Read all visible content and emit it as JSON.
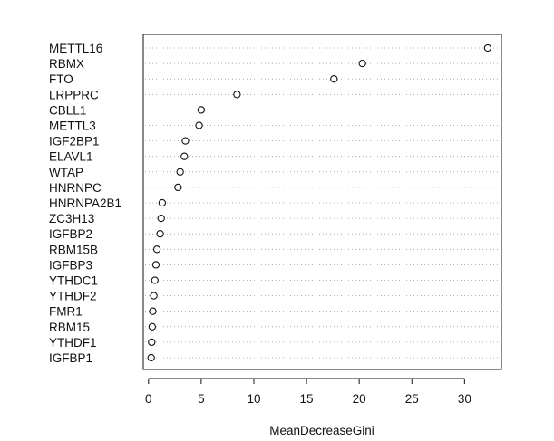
{
  "chart_data": {
    "type": "scatter",
    "subtype": "dot-chart",
    "title": "",
    "xlabel": "MeanDecreaseGini",
    "ylabel": "",
    "xlim": [
      -0.5,
      33.5
    ],
    "xticks": [
      0,
      5,
      10,
      15,
      20,
      25,
      30
    ],
    "grid": "dotted-horizontal-guides",
    "legend": "none",
    "categories": [
      "METTL16",
      "RBMX",
      "FTO",
      "LRPPRC",
      "CBLL1",
      "METTL3",
      "IGF2BP1",
      "ELAVL1",
      "WTAP",
      "HNRNPC",
      "HNRNPA2B1",
      "ZC3H13",
      "IGFBP2",
      "RBM15B",
      "IGFBP3",
      "YTHDC1",
      "YTHDF2",
      "FMR1",
      "RBM15",
      "YTHDF1",
      "IGFBP1"
    ],
    "series": [
      {
        "values": [
          32.2,
          20.3,
          17.6,
          8.4,
          5.0,
          4.8,
          3.5,
          3.4,
          3.0,
          2.8,
          1.3,
          1.2,
          1.1,
          0.8,
          0.7,
          0.6,
          0.5,
          0.4,
          0.35,
          0.3,
          0.25
        ]
      }
    ]
  },
  "colors": {
    "axis": "#111111",
    "guide": "#9a9a9a",
    "marker_fill": "#ffffff",
    "marker_stroke": "#111111"
  }
}
